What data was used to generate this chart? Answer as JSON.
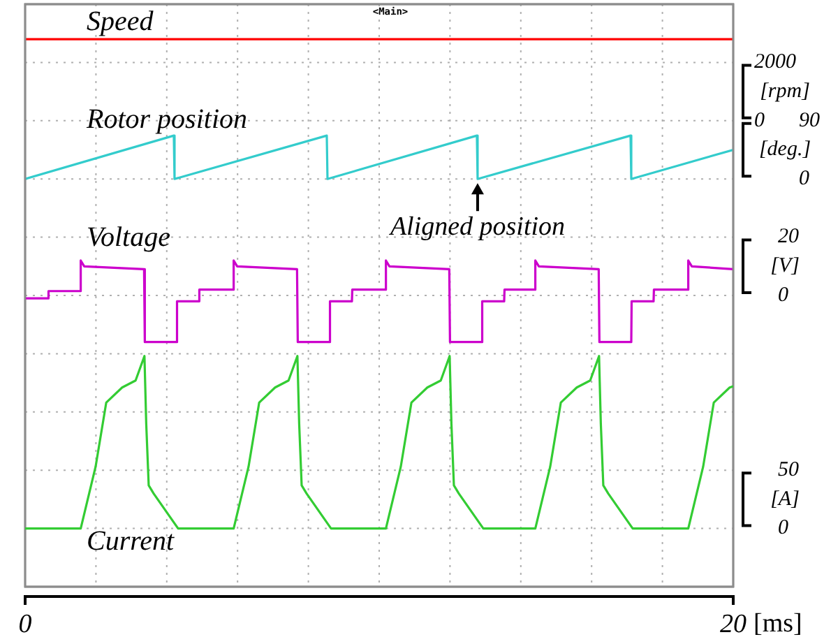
{
  "chart_data": [
    {
      "type": "line",
      "ylabel": "[rpm]",
      "xlim": [
        0,
        20
      ],
      "xticks": [
        {
          "value": 0,
          "label": null
        },
        {
          "value": 2,
          "label": null
        },
        {
          "value": 4,
          "label": null
        },
        {
          "value": 6,
          "label": null
        },
        {
          "value": 8,
          "label": null
        },
        {
          "value": 10,
          "label": null
        },
        {
          "value": 12,
          "label": null
        },
        {
          "value": 14,
          "label": null
        },
        {
          "value": 16,
          "label": null
        },
        {
          "value": 18,
          "label": null
        },
        {
          "value": 20,
          "label": null
        }
      ],
      "ylim": [
        -16000,
        4000
      ],
      "yticks": [
        {
          "value": -16000,
          "label": null
        },
        {
          "value": -14000,
          "label": null
        },
        {
          "value": -12000,
          "label": null
        },
        {
          "value": -10000,
          "label": null
        },
        {
          "value": -8000,
          "label": null
        },
        {
          "value": -6000,
          "label": null
        },
        {
          "value": -4000,
          "label": null
        },
        {
          "value": -2000,
          "label": null
        },
        0,
        2000,
        {
          "value": 4000,
          "label": null
        }
      ],
      "grid": true,
      "tick_labels": "y",
      "annotations": [
        "<Main>"
      ],
      "series": [
        {
          "name": "Speed",
          "color": "#ff0000",
          "x": [
            0,
            20
          ],
          "values": [
            2800,
            2800
          ]
        }
      ]
    },
    {
      "type": "line",
      "ylabel": "[deg.]",
      "xlim": [
        0,
        20
      ],
      "ylim": [
        -630,
        270
      ],
      "yticks": [
        0,
        90
      ],
      "tick_labels": "y",
      "annotations": [
        {
          "text": "Aligned position",
          "x": 12.78,
          "y": 0
        }
      ],
      "series": [
        {
          "name": "Rotor position",
          "color": "#33cccc",
          "x": [
            0,
            4.2,
            4.22,
            8.52,
            8.54,
            12.76,
            12.78,
            17.1,
            17.12,
            20
          ],
          "values": [
            0,
            67,
            0,
            67,
            0,
            67,
            0,
            67,
            0,
            45
          ]
        }
      ]
    },
    {
      "type": "line",
      "ylabel": "[V]",
      "xlim": [
        0,
        20
      ],
      "ylim": [
        -100,
        100
      ],
      "yticks": [
        0,
        20
      ],
      "tick_labels": "y",
      "series": [
        {
          "name": "Voltage",
          "color": "#cc00cc",
          "x": [
            0,
            0.65,
            0.66,
            1.56,
            1.57,
            1.67,
            3.36,
            3.38,
            4.28,
            4.29,
            4.91,
            4.92,
            5.88,
            5.89,
            5.99,
            7.68,
            7.7,
            8.6,
            8.61,
            9.23,
            9.24,
            10.18,
            10.19,
            10.29,
            11.98,
            12.0,
            12.9,
            12.91,
            13.53,
            13.54,
            14.4,
            14.41,
            14.51,
            16.2,
            16.22,
            17.12,
            17.13,
            17.75,
            17.76,
            18.72,
            18.73,
            18.83,
            20
          ],
          "values": [
            -1,
            -1,
            1.5,
            1.5,
            12,
            10,
            9,
            -16,
            -16,
            -2,
            -2,
            2,
            2,
            12,
            10,
            9,
            -16,
            -16,
            -2,
            -2,
            2,
            2,
            12,
            10,
            9,
            -16,
            -16,
            -2,
            -2,
            2,
            2,
            12,
            10,
            9,
            -16,
            -16,
            -2,
            -2,
            2,
            2,
            12,
            10,
            9
          ]
        }
      ]
    },
    {
      "type": "line",
      "xlabel": "[ms]",
      "ylabel": "[A]",
      "xlim": [
        0,
        20
      ],
      "xticks": [
        0,
        20
      ],
      "ylim": [
        -50,
        450
      ],
      "yticks": [
        0,
        50
      ],
      "series": [
        {
          "name": "Current",
          "color": "#33cc33",
          "x": [
            0,
            1.57,
            1.99,
            2.29,
            2.74,
            3.12,
            3.37,
            3.42,
            3.49,
            3.63,
            4.32,
            5.89,
            6.31,
            6.61,
            7.06,
            7.44,
            7.69,
            7.74,
            7.81,
            7.95,
            8.64,
            10.19,
            10.61,
            10.91,
            11.36,
            11.74,
            11.99,
            12.04,
            12.11,
            12.25,
            12.94,
            14.41,
            14.83,
            15.13,
            15.58,
            15.96,
            16.21,
            16.26,
            16.33,
            16.47,
            17.16,
            18.73,
            19.15,
            19.45,
            19.9,
            20
          ],
          "values": [
            0,
            0,
            53,
            108,
            121,
            127,
            148,
            90,
            37,
            30,
            0,
            0,
            53,
            108,
            121,
            127,
            148,
            90,
            37,
            30,
            0,
            0,
            53,
            108,
            121,
            127,
            148,
            90,
            37,
            30,
            0,
            0,
            53,
            108,
            121,
            127,
            148,
            90,
            37,
            30,
            0,
            0,
            53,
            108,
            121,
            122
          ]
        }
      ]
    }
  ]
}
